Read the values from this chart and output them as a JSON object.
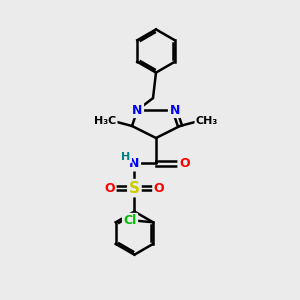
{
  "background_color": "#ebebeb",
  "atom_colors": {
    "N": "#0000ff",
    "O": "#ff0000",
    "S": "#cccc00",
    "Cl": "#00bb00",
    "H": "#008080",
    "C": "#000000"
  },
  "bond_color": "#000000",
  "bond_width": 1.8,
  "fig_size": [
    3.0,
    3.0
  ],
  "dpi": 100
}
